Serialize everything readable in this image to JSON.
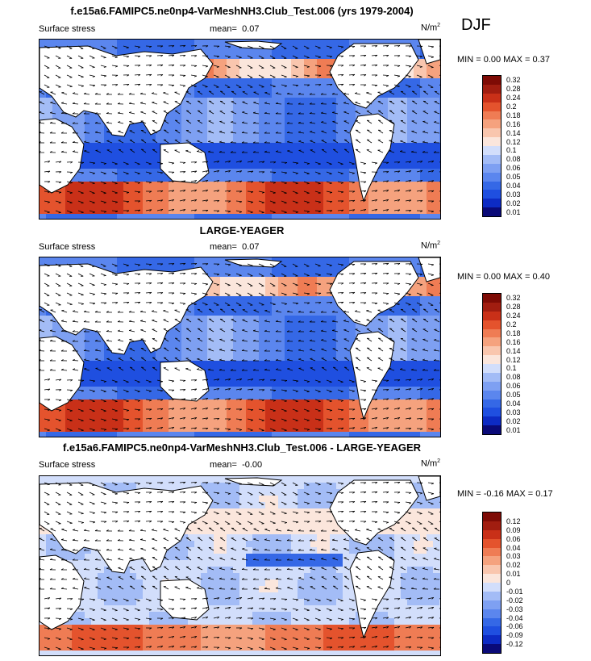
{
  "season": "DJF",
  "colors": {
    "abs_scale": [
      "#0a0a78",
      "#0d2bc4",
      "#1f4fe0",
      "#3568e6",
      "#5b86ee",
      "#7ea0f2",
      "#a3bcf6",
      "#d2defb",
      "#fbe6dc",
      "#f9c6ae",
      "#f5a27e",
      "#ef7c54",
      "#e4532d",
      "#c93018",
      "#a11d10",
      "#7e0b05"
    ],
    "diff_scale": [
      "#0a0a78",
      "#0d2bc4",
      "#1f4fe0",
      "#3568e6",
      "#5b86ee",
      "#7ea0f2",
      "#a3bcf6",
      "#d2defb",
      "#fbe6dc",
      "#f9c6ae",
      "#f5a27e",
      "#ef7c54",
      "#e4532d",
      "#c93018",
      "#a11d10",
      "#7e0b05"
    ]
  },
  "panels": [
    {
      "title": "f.e15a6.FAMIPC5.ne0np4-VarMeshNH3.Club_Test.006 (yrs 1979-2004)",
      "variable": "Surface stress",
      "mean_label": "mean=",
      "mean": "0.07",
      "units": "N/m",
      "units_exp": "2",
      "minmax": "MIN =  0.00 MAX =  0.37",
      "scale": "abs",
      "labels": [
        "0.32",
        "0.28",
        "0.24",
        "0.2",
        "0.18",
        "0.16",
        "0.14",
        "0.12",
        "0.1",
        "0.08",
        "0.06",
        "0.05",
        "0.04",
        "0.03",
        "0.02",
        "0.01"
      ]
    },
    {
      "title": "LARGE-YEAGER",
      "variable": "Surface stress",
      "mean_label": "mean=",
      "mean": "0.07",
      "units": "N/m",
      "units_exp": "2",
      "minmax": "MIN =  0.00 MAX =  0.40",
      "scale": "abs",
      "labels": [
        "0.32",
        "0.28",
        "0.24",
        "0.2",
        "0.18",
        "0.16",
        "0.14",
        "0.12",
        "0.1",
        "0.08",
        "0.06",
        "0.05",
        "0.04",
        "0.03",
        "0.02",
        "0.01"
      ]
    },
    {
      "title": "f.e15a6.FAMIPC5.ne0np4-VarMeshNH3.Club_Test.006 - LARGE-YEAGER",
      "variable": "Surface stress",
      "mean_label": "mean=",
      "mean": "-0.00",
      "units": "N/m",
      "units_exp": "2",
      "minmax": "MIN = -0.16 MAX =  0.17",
      "scale": "diff",
      "labels": [
        "0.12",
        "0.09",
        "0.06",
        "0.04",
        "0.03",
        "0.02",
        "0.01",
        "0",
        "-0.01",
        "-0.02",
        "-0.03",
        "-0.04",
        "-0.06",
        "-0.09",
        "-0.12"
      ]
    }
  ]
}
